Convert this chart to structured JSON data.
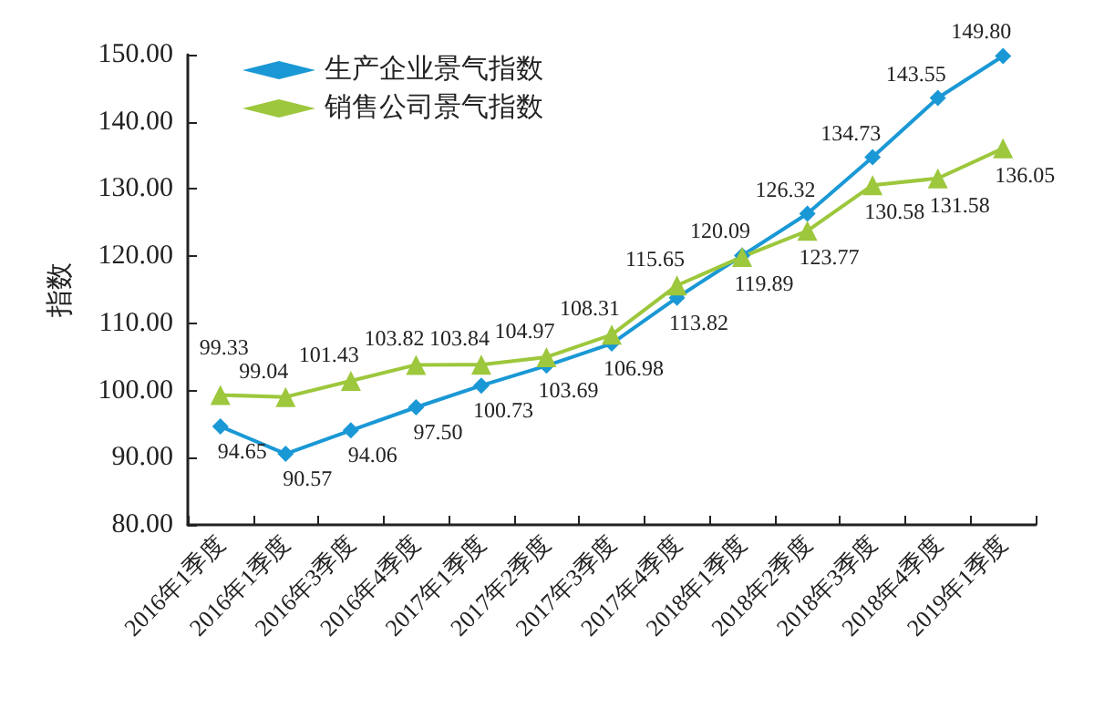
{
  "chart_data": {
    "type": "line",
    "ylabel": "指数",
    "categories": [
      "2016年1季度",
      "2016年1季度",
      "2016年3季度",
      "2016年4季度",
      "2017年1季度",
      "2017年2季度",
      "2017年3季度",
      "2017年4季度",
      "2018年1季度",
      "2018年2季度",
      "2018年3季度",
      "2018年4季度",
      "2019年1季度"
    ],
    "series": [
      {
        "name": "生产企业景气指数",
        "color": "#1a98d5",
        "marker": "diamond",
        "values": [
          94.65,
          90.57,
          94.06,
          97.5,
          100.73,
          103.69,
          106.98,
          113.82,
          120.09,
          126.32,
          134.73,
          143.55,
          149.8
        ],
        "value_labels": [
          "94.65",
          "90.57",
          "94.06",
          "97.50",
          "100.73",
          "103.69",
          "106.98",
          "113.82",
          "120.09",
          "126.32",
          "134.73",
          "143.55",
          "149.80"
        ]
      },
      {
        "name": "销售公司景气指数",
        "color": "#9dc73c",
        "marker": "triangle",
        "values": [
          99.33,
          99.04,
          101.43,
          103.82,
          103.84,
          104.97,
          108.31,
          115.65,
          119.89,
          123.77,
          130.58,
          131.58,
          136.05
        ],
        "value_labels": [
          "99.33",
          "99.04",
          "101.43",
          "103.82",
          "103.84",
          "104.97",
          "108.31",
          "115.65",
          "119.89",
          "123.77",
          "130.58",
          "131.58",
          "136.05"
        ]
      }
    ],
    "ylim": [
      80,
      150
    ],
    "yticks": [
      {
        "value": 80,
        "label": "80.00"
      },
      {
        "value": 90,
        "label": "90.00"
      },
      {
        "value": 100,
        "label": "100.00"
      },
      {
        "value": 110,
        "label": "110.00"
      },
      {
        "value": 120,
        "label": "120.00"
      },
      {
        "value": 130,
        "label": "130.00"
      },
      {
        "value": 140,
        "label": "140.00"
      },
      {
        "value": 150,
        "label": "150.00"
      }
    ],
    "grid": false,
    "legend": "top left",
    "line_style": "solid"
  }
}
